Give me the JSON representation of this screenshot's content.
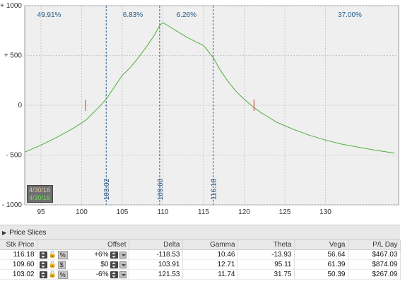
{
  "chart_data": {
    "type": "line",
    "title": "",
    "xlabel": "",
    "ylabel": "",
    "xlim": [
      93,
      139
    ],
    "ylim": [
      -1000,
      1000
    ],
    "xticks": [
      95,
      100,
      105,
      110,
      115,
      120,
      125,
      130
    ],
    "yticks": [
      1000,
      500,
      0,
      -500,
      -1000
    ],
    "ytick_labels": [
      "+ 1000",
      "+ 500",
      "0",
      "- 500",
      "- 1000"
    ],
    "grid": true,
    "series": [
      {
        "color": "#4caf3a",
        "x": [
          93,
          95,
          97,
          99,
          100.5,
          101,
          102,
          103.02,
          104,
          105,
          106,
          107,
          108,
          109,
          109.6,
          110,
          111,
          112,
          113,
          114,
          115,
          116.18,
          117,
          118,
          119,
          120,
          121,
          122,
          124,
          126,
          128,
          130,
          132,
          134,
          136,
          138.5
        ],
        "y": [
          -470,
          -400,
          -320,
          -230,
          -150,
          -110,
          -30,
          60,
          180,
          300,
          380,
          480,
          590,
          710,
          800,
          830,
          780,
          730,
          680,
          640,
          600,
          480,
          360,
          240,
          140,
          60,
          -10,
          -70,
          -170,
          -240,
          -300,
          -350,
          -390,
          -420,
          -450,
          -480
        ]
      }
    ],
    "red_markers": [
      100.5,
      121.2
    ],
    "vertical_lines": [
      {
        "x": 103.02,
        "label": "103.02",
        "dashed": true
      },
      {
        "x": 109.6,
        "label": "109.60",
        "dashed": true
      },
      {
        "x": 116.18,
        "label": "116.18",
        "dashed": true
      }
    ],
    "region_percentages": [
      {
        "x": 96,
        "text": "49.91%"
      },
      {
        "x": 106.3,
        "text": "6.83%"
      },
      {
        "x": 112.9,
        "text": "6.26%"
      },
      {
        "x": 133,
        "text": "37.00%"
      }
    ],
    "dates": [
      "4/30/16",
      "4/30/16"
    ]
  },
  "slices": {
    "title": "Price Slices",
    "columns": [
      "Stk Price",
      "Offset",
      "Delta",
      "Gamma",
      "Theta",
      "Vega",
      "P/L Day"
    ],
    "rows": [
      {
        "stk": "116.18",
        "mode": "%",
        "offset": "+6%",
        "delta": "-118.53",
        "gamma": "10.46",
        "theta": "-13.93",
        "vega": "56.64",
        "pl": "$467.03"
      },
      {
        "stk": "109.60",
        "mode": "$",
        "offset": "$0",
        "delta": "103.91",
        "gamma": "12.71",
        "theta": "95.11",
        "vega": "61.39",
        "pl": "$874.09"
      },
      {
        "stk": "103.02",
        "mode": "%",
        "offset": "-6%",
        "delta": "121.53",
        "gamma": "11.74",
        "theta": "31.75",
        "vega": "50.39",
        "pl": "$267.09"
      }
    ]
  }
}
